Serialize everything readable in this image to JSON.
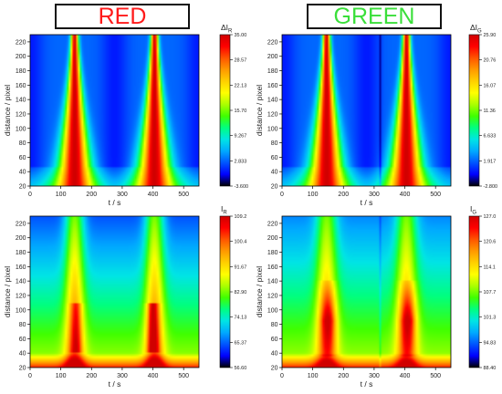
{
  "titles": {
    "red": {
      "text": "RED",
      "color": "#ff1a1a"
    },
    "green": {
      "text": "GREEN",
      "color": "#3adf3a"
    }
  },
  "colormap": [
    "#000000",
    "#0000ff",
    "#0055ff",
    "#00aaff",
    "#00e5e5",
    "#00ff80",
    "#40ff00",
    "#aaff00",
    "#ffff00",
    "#ffd000",
    "#ff9900",
    "#ff5500",
    "#ff0000",
    "#d00000"
  ],
  "chart_data": [
    {
      "type": "heatmap",
      "panel": "delta-red",
      "xlabel": "t / s",
      "ylabel": "distance / pixel",
      "xlim": [
        0,
        550
      ],
      "ylim": [
        20,
        230
      ],
      "xticks": [
        0,
        100,
        200,
        300,
        400,
        500
      ],
      "yticks": [
        20,
        40,
        60,
        80,
        100,
        120,
        140,
        160,
        180,
        200,
        220
      ],
      "colorbar": {
        "label_main": "ΔI",
        "label_sub": "R",
        "ticks": [
          "35.00",
          "28.57",
          "22.13",
          "15.70",
          "9.267",
          "2.833",
          "-3.600"
        ],
        "range": [
          -3.6,
          35.0
        ]
      },
      "peaks_t": [
        145,
        405
      ],
      "peak_spread_t": {
        "min": 8,
        "max": 40
      },
      "trough_t": [
        0,
        275,
        550
      ],
      "value_range": [
        -3.6,
        35.0
      ]
    },
    {
      "type": "heatmap",
      "panel": "delta-green",
      "xlabel": "t / s",
      "ylabel": "distance / pixel",
      "xlim": [
        0,
        550
      ],
      "ylim": [
        20,
        230
      ],
      "xticks": [
        0,
        100,
        200,
        300,
        400,
        500
      ],
      "yticks": [
        20,
        40,
        60,
        80,
        100,
        120,
        140,
        160,
        180,
        200,
        220
      ],
      "colorbar": {
        "label_main": "ΔI",
        "label_sub": "G",
        "ticks": [
          "25.90",
          "20.76",
          "16.07",
          "11.36",
          "6.633",
          "1.917",
          "-2.800"
        ],
        "range": [
          -2.8,
          25.9
        ]
      },
      "peaks_t": [
        145,
        405
      ],
      "peak_spread_t": {
        "min": 8,
        "max": 40
      },
      "trough_t": [
        0,
        275,
        550
      ],
      "dark_line_t": 320,
      "value_range": [
        -2.8,
        25.9
      ]
    },
    {
      "type": "heatmap",
      "panel": "intensity-red",
      "xlabel": "t / s",
      "ylabel": "distance / pixel",
      "xlim": [
        0,
        550
      ],
      "ylim": [
        20,
        230
      ],
      "xticks": [
        0,
        100,
        200,
        300,
        400,
        500
      ],
      "yticks": [
        20,
        40,
        60,
        80,
        100,
        120,
        140,
        160,
        180,
        200,
        220
      ],
      "colorbar": {
        "label_main": "I",
        "label_sub": "R",
        "ticks": [
          "109.2",
          "100.4",
          "91.67",
          "82.90",
          "74.13",
          "65.37",
          "56.60"
        ],
        "range": [
          56.6,
          109.2
        ]
      },
      "peaks_t": [
        145,
        405
      ],
      "value_range": [
        56.6,
        109.2
      ]
    },
    {
      "type": "heatmap",
      "panel": "intensity-green",
      "xlabel": "t / s",
      "ylabel": "distance / pixel",
      "xlim": [
        0,
        550
      ],
      "ylim": [
        20,
        230
      ],
      "xticks": [
        0,
        100,
        200,
        300,
        400,
        500
      ],
      "yticks": [
        20,
        40,
        60,
        80,
        100,
        120,
        140,
        160,
        180,
        200,
        220
      ],
      "colorbar": {
        "label_main": "I",
        "label_sub": "G",
        "ticks": [
          "127.0",
          "120.6",
          "114.1",
          "107.7",
          "101.3",
          "94.83",
          "88.40"
        ],
        "range": [
          88.4,
          127.0
        ]
      },
      "peaks_t": [
        145,
        405
      ],
      "dark_line_t": 320,
      "value_range": [
        88.4,
        127.0
      ]
    }
  ]
}
